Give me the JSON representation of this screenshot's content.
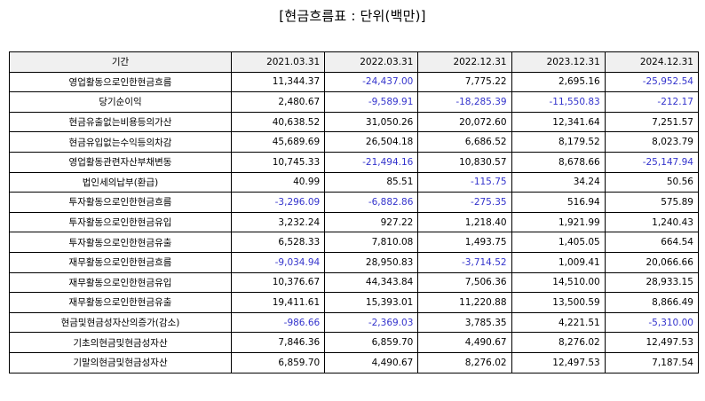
{
  "title": "[현금흐름표 : 단위(백만)]",
  "colors": {
    "negative": "#3333cc",
    "positive": "#000000",
    "header_bg": "#f0f0f0"
  },
  "table": {
    "headers": [
      "기간",
      "2021.03.31",
      "2022.03.31",
      "2022.12.31",
      "2023.12.31",
      "2024.12.31"
    ],
    "rows": [
      {
        "label": "영업활동으로인한현금흐름",
        "values": [
          "11,344.37",
          "-24,437.00",
          "7,775.22",
          "2,695.16",
          "-25,952.54"
        ]
      },
      {
        "label": "당기순이익",
        "values": [
          "2,480.67",
          "-9,589.91",
          "-18,285.39",
          "-11,550.83",
          "-212.17"
        ]
      },
      {
        "label": "현금유출없는비용등의가산",
        "values": [
          "40,638.52",
          "31,050.26",
          "20,072.60",
          "12,341.64",
          "7,251.57"
        ]
      },
      {
        "label": "현금유입없는수익등의차감",
        "values": [
          "45,689.69",
          "26,504.18",
          "6,686.52",
          "8,179.52",
          "8,023.79"
        ]
      },
      {
        "label": "영업활동관련자산부채변동",
        "values": [
          "10,745.33",
          "-21,494.16",
          "10,830.57",
          "8,678.66",
          "-25,147.94"
        ]
      },
      {
        "label": "법인세의납부(환급)",
        "values": [
          "40.99",
          "85.51",
          "-115.75",
          "34.24",
          "50.56"
        ]
      },
      {
        "label": "투자활동으로인한현금흐름",
        "values": [
          "-3,296.09",
          "-6,882.86",
          "-275.35",
          "516.94",
          "575.89"
        ]
      },
      {
        "label": "투자활동으로인한현금유입",
        "values": [
          "3,232.24",
          "927.22",
          "1,218.40",
          "1,921.99",
          "1,240.43"
        ]
      },
      {
        "label": "투자활동으로인한현금유출",
        "values": [
          "6,528.33",
          "7,810.08",
          "1,493.75",
          "1,405.05",
          "664.54"
        ]
      },
      {
        "label": "재무활동으로인한현금흐름",
        "values": [
          "-9,034.94",
          "28,950.83",
          "-3,714.52",
          "1,009.41",
          "20,066.66"
        ]
      },
      {
        "label": "재무활동으로인한현금유입",
        "values": [
          "10,376.67",
          "44,343.84",
          "7,506.36",
          "14,510.00",
          "28,933.15"
        ]
      },
      {
        "label": "재무활동으로인한현금유출",
        "values": [
          "19,411.61",
          "15,393.01",
          "11,220.88",
          "13,500.59",
          "8,866.49"
        ]
      },
      {
        "label": "현금및현금성자산의증가(감소)",
        "values": [
          "-986.66",
          "-2,369.03",
          "3,785.35",
          "4,221.51",
          "-5,310.00"
        ]
      },
      {
        "label": "기초의현금및현금성자산",
        "values": [
          "7,846.36",
          "6,859.70",
          "4,490.67",
          "8,276.02",
          "12,497.53"
        ]
      },
      {
        "label": "기말의현금및현금성자산",
        "values": [
          "6,859.70",
          "4,490.67",
          "8,276.02",
          "12,497.53",
          "7,187.54"
        ]
      }
    ]
  }
}
